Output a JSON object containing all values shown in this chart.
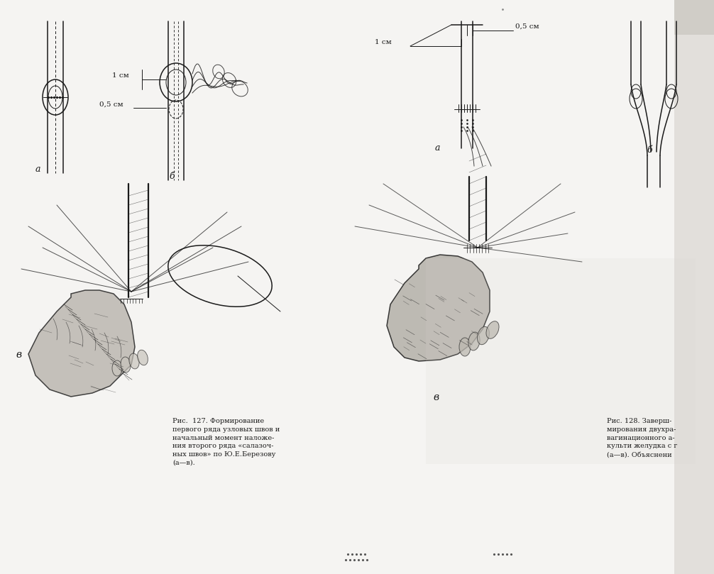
{
  "bg_color": "#f5f4f2",
  "line_color": "#1a1a1a",
  "fig_width": 10.06,
  "fig_height": 8.09,
  "dpi": 100,
  "caption_left": "Рис.  127. Формирование\nпервого ряда узловых швов и\nначальный момент наложе-\nния второго ряда «салазоч-\nных швов» по Ю.Е.Березову\n(а—в).",
  "caption_right": "Рис. 128. Заверш-\nмирования двухра-\nвагинационного а-\nкульти желудка с г\n(а—в). Объяснени",
  "label_a_left": "а",
  "label_b_left": "б",
  "label_v_left": "в",
  "label_a_right": "а",
  "label_b_right": "б",
  "label_v_right": "в",
  "label_1cm_left": "1 см",
  "label_05cm_left": "0,5 см",
  "label_05cm_right": "0,5 см",
  "label_1cm_right": "1 см"
}
